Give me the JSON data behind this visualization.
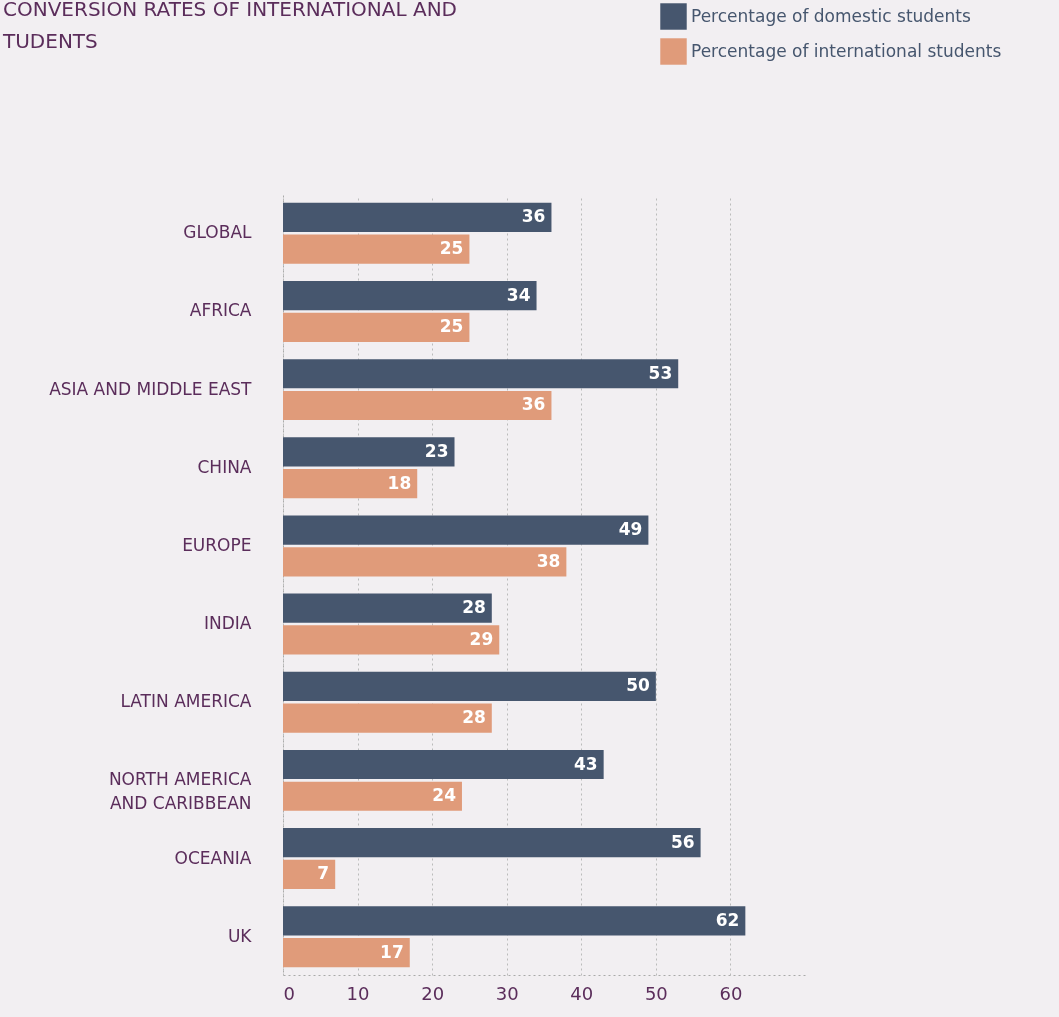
{
  "chart_data": {
    "type": "bar",
    "orientation": "horizontal",
    "title": [
      "CONVERSION RATES OF INTERNATIONAL AND",
      "TUDENTS"
    ],
    "categories": [
      "GLOBAL",
      "AFRICA",
      "ASIA AND MIDDLE EAST",
      "CHINA",
      "EUROPE",
      "INDIA",
      "LATIN AMERICA",
      "NORTH AMERICA\nAND CARIBBEAN",
      "OCEANIA",
      "UK"
    ],
    "series": [
      {
        "name": "Percentage of domestic students",
        "color": "#46566e",
        "values": [
          36,
          34,
          53,
          23,
          49,
          28,
          50,
          43,
          56,
          62
        ]
      },
      {
        "name": "Percentage of international students",
        "color": "#e09b7a",
        "values": [
          25,
          25,
          36,
          18,
          38,
          29,
          28,
          24,
          7,
          17
        ]
      }
    ],
    "xlim": [
      0,
      70
    ],
    "xticks": [
      0,
      10,
      20,
      30,
      40,
      50,
      60
    ],
    "grid": "x",
    "legend": "top right",
    "data_labels": true
  }
}
